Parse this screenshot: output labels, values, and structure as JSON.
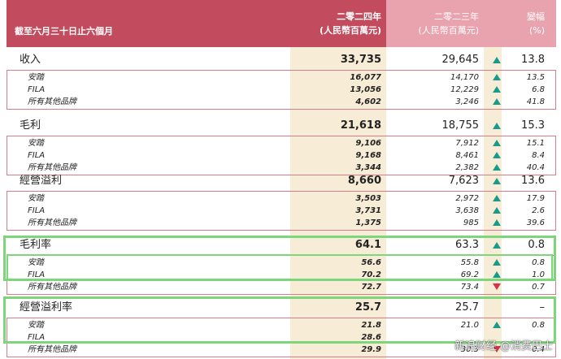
{
  "header": {
    "label": "截至六月三十日止六個月",
    "col2024_line1": "二零二四年",
    "col2024_line2": "(人民幣百萬元)",
    "col2023_line1": "二零二三年",
    "col2023_line2": "(人民幣百萬元)",
    "change_line1": "變幅",
    "change_line2": "(%)"
  },
  "colors": {
    "header_dark": "#c24b5e",
    "header_light": "#e9a3ae",
    "col_bg": "#f7ecd6",
    "up": "#1a9a8c",
    "down": "#d6324a",
    "highlight": "#7ed67a"
  },
  "sections": [
    {
      "main": {
        "label": "收入",
        "v2024": "33,735",
        "v2023": "29,645",
        "dir": "up",
        "change": "13.8"
      },
      "subs": [
        {
          "label": "安踏",
          "v2024": "16,077",
          "v2023": "14,170",
          "dir": "up",
          "change": "13.5"
        },
        {
          "label": "FILA",
          "v2024": "13,056",
          "v2023": "12,229",
          "dir": "up",
          "change": "6.8"
        },
        {
          "label": "所有其他品牌",
          "v2024": "4,602",
          "v2023": "3,246",
          "dir": "up",
          "change": "41.8"
        }
      ]
    },
    {
      "main": {
        "label": "毛利",
        "v2024": "21,618",
        "v2023": "18,755",
        "dir": "up",
        "change": "15.3"
      },
      "subs": [
        {
          "label": "安踏",
          "v2024": "9,106",
          "v2023": "7,912",
          "dir": "up",
          "change": "15.1"
        },
        {
          "label": "FILA",
          "v2024": "9,168",
          "v2023": "8,461",
          "dir": "up",
          "change": "8.4"
        },
        {
          "label": "所有其他品牌",
          "v2024": "3,344",
          "v2023": "2,382",
          "dir": "up",
          "change": "40.4"
        }
      ]
    },
    {
      "main": {
        "label": "經營溢利",
        "v2024": "8,660",
        "v2023": "7,623",
        "dir": "up",
        "change": "13.6"
      },
      "subs": [
        {
          "label": "安踏",
          "v2024": "3,503",
          "v2023": "2,972",
          "dir": "up",
          "change": "17.9"
        },
        {
          "label": "FILA",
          "v2024": "3,731",
          "v2023": "3,638",
          "dir": "up",
          "change": "2.6"
        },
        {
          "label": "所有其他品牌",
          "v2024": "1,375",
          "v2023": "985",
          "dir": "up",
          "change": "39.6"
        }
      ]
    },
    {
      "main": {
        "label": "毛利率",
        "v2024": "64.1",
        "v2023": "63.3",
        "dir": "up",
        "change": "0.8"
      },
      "subs": [
        {
          "label": "安踏",
          "v2024": "56.6",
          "v2023": "55.8",
          "dir": "up",
          "change": "0.8"
        },
        {
          "label": "FILA",
          "v2024": "70.2",
          "v2023": "69.2",
          "dir": "up",
          "change": "1.0"
        },
        {
          "label": "所有其他品牌",
          "v2024": "72.7",
          "v2023": "73.4",
          "dir": "down",
          "change": "0.7"
        }
      ]
    },
    {
      "main": {
        "label": "經營溢利率",
        "v2024": "25.7",
        "v2023": "25.7",
        "dir": "none",
        "change": "–"
      },
      "subs": [
        {
          "label": "安踏",
          "v2024": "21.8",
          "v2023": "21.0",
          "dir": "up",
          "change": "0.8"
        },
        {
          "label": "FILA",
          "v2024": "28.6",
          "v2023": "",
          "dir": "",
          "change": ""
        },
        {
          "label": "所有其他品牌",
          "v2024": "29.9",
          "v2023": "30.3",
          "dir": "down",
          "change": "0.4"
        }
      ]
    }
  ],
  "watermark": "新浪财经 @消费巴士"
}
